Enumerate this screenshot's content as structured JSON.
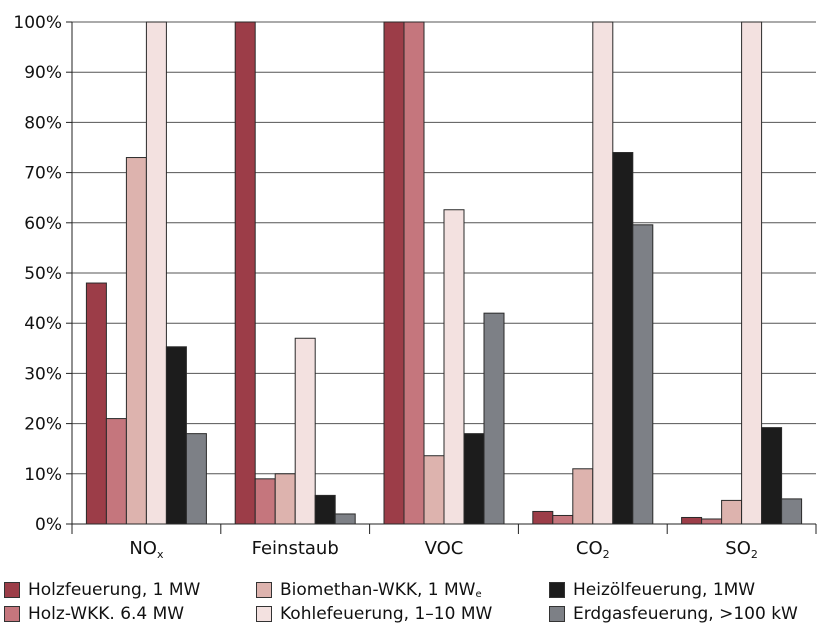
{
  "chart_data": {
    "type": "bar",
    "title": "",
    "xlabel": "",
    "ylabel": "",
    "ylim": [
      0,
      100
    ],
    "yticks": [
      "0%",
      "10%",
      "20%",
      "30%",
      "40%",
      "50%",
      "60%",
      "70%",
      "80%",
      "90%",
      "100%"
    ],
    "categories": [
      {
        "base": "NO",
        "sub": "x"
      },
      {
        "base": "Feinstaub",
        "sub": ""
      },
      {
        "base": "VOC",
        "sub": ""
      },
      {
        "base": "CO",
        "sub": "2"
      },
      {
        "base": "SO",
        "sub": "2"
      }
    ],
    "series": [
      {
        "name": "Holzfeuerung, 1 MW",
        "name_sub": "",
        "color": "#9c3d48",
        "values": [
          48,
          100,
          100,
          2.5,
          1.3
        ]
      },
      {
        "name": "Holz-WKK. 6.4 MW",
        "name_sub": "",
        "color": "#c5767d",
        "values": [
          21,
          9,
          100,
          1.7,
          1
        ]
      },
      {
        "name": "Biomethan-WKK, 1 MW",
        "name_sub": "e",
        "color": "#ddb3ae",
        "values": [
          73,
          10,
          13.6,
          11,
          4.7
        ]
      },
      {
        "name": "Kohlefeuerung, 1–10 MW",
        "name_sub": "",
        "color": "#f3e1e0",
        "values": [
          100,
          37,
          62.6,
          100,
          100
        ]
      },
      {
        "name": "Heizölfeuerung, 1MW",
        "name_sub": "",
        "color": "#1c1c1c",
        "values": [
          35.3,
          5.7,
          18,
          74,
          19.2
        ]
      },
      {
        "name": "Erdgasfeuerung, >100 kW",
        "name_sub": "",
        "color": "#7d8086",
        "values": [
          18,
          2,
          42,
          59.6,
          5
        ]
      }
    ],
    "grid": true,
    "legend_position": "bottom"
  }
}
